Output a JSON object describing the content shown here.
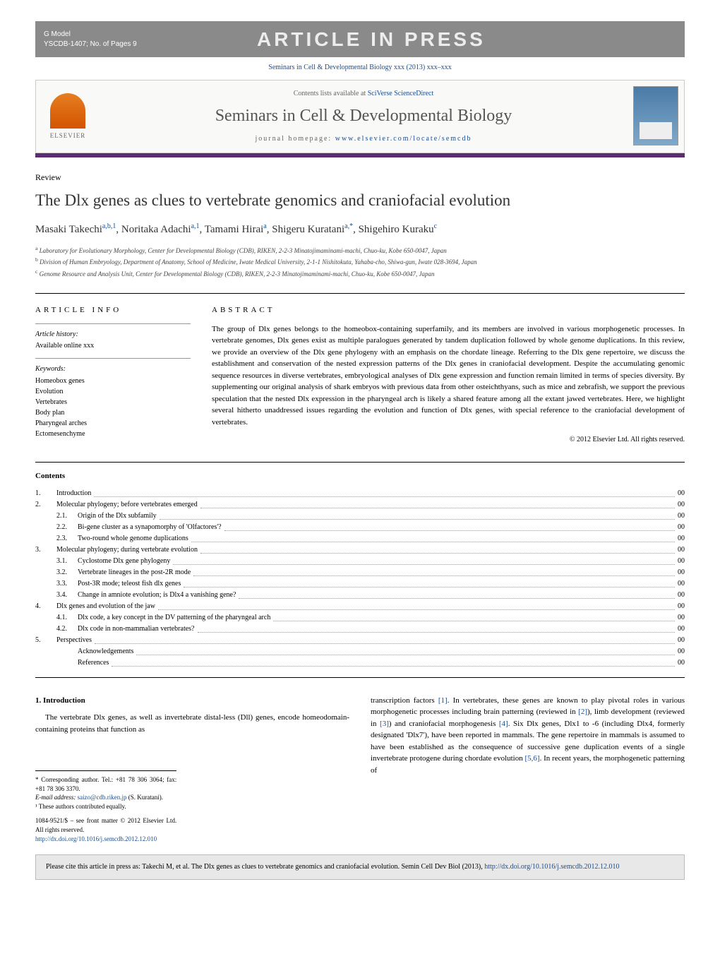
{
  "gmodel": {
    "label": "G Model",
    "ref": "YSCDB-1407;   No. of Pages 9",
    "banner": "ARTICLE IN PRESS"
  },
  "journal_ref": "Seminars in Cell & Developmental Biology xxx (2013) xxx–xxx",
  "header": {
    "contents_prefix": "Contents lists available at ",
    "contents_link": "SciVerse ScienceDirect",
    "journal_title": "Seminars in Cell & Developmental Biology",
    "homepage_prefix": "journal homepage: ",
    "homepage_link": "www.elsevier.com/locate/semcdb",
    "elsevier": "ELSEVIER"
  },
  "article": {
    "type": "Review",
    "title": "The Dlx genes as clues to vertebrate genomics and craniofacial evolution",
    "authors_html": "Masaki Takechi",
    "author1": {
      "name": "Masaki Takechi",
      "sup": "a,b,1"
    },
    "author2": {
      "name": "Noritaka Adachi",
      "sup": "a,1"
    },
    "author3": {
      "name": "Tamami Hirai",
      "sup": "a"
    },
    "author4": {
      "name": "Shigeru Kuratani",
      "sup": "a,*"
    },
    "author5": {
      "name": "Shigehiro Kuraku",
      "sup": "c"
    }
  },
  "affiliations": {
    "a": "Laboratory for Evolutionary Morphology, Center for Developmental Biology (CDB), RIKEN, 2-2-3 Minatojimaminami-machi, Chuo-ku, Kobe 650-0047, Japan",
    "b": "Division of Human Embryology, Department of Anatomy, School of Medicine, Iwate Medical University, 2-1-1 Nishitokuta, Yahaba-cho, Shiwa-gun, Iwate 028-3694, Japan",
    "c": "Genome Resource and Analysis Unit, Center for Developmental Biology (CDB), RIKEN, 2-2-3 Minatojimaminami-machi, Chuo-ku, Kobe 650-0047, Japan"
  },
  "info": {
    "heading": "ARTICLE INFO",
    "history_label": "Article history:",
    "history_text": "Available online xxx",
    "keywords_label": "Keywords:",
    "keywords": [
      "Homeobox genes",
      "Evolution",
      "Vertebrates",
      "Body plan",
      "Pharyngeal arches",
      "Ectomesenchyme"
    ]
  },
  "abstract": {
    "heading": "ABSTRACT",
    "text": "The group of Dlx genes belongs to the homeobox-containing superfamily, and its members are involved in various morphogenetic processes. In vertebrate genomes, Dlx genes exist as multiple paralogues generated by tandem duplication followed by whole genome duplications. In this review, we provide an overview of the Dlx gene phylogeny with an emphasis on the chordate lineage. Referring to the Dlx gene repertoire, we discuss the establishment and conservation of the nested expression patterns of the Dlx genes in craniofacial development. Despite the accumulating genomic sequence resources in diverse vertebrates, embryological analyses of Dlx gene expression and function remain limited in terms of species diversity. By supplementing our original analysis of shark embryos with previous data from other osteichthyans, such as mice and zebrafish, we support the previous speculation that the nested Dlx expression in the pharyngeal arch is likely a shared feature among all the extant jawed vertebrates. Here, we highlight several hitherto unaddressed issues regarding the evolution and function of Dlx genes, with special reference to the craniofacial development of vertebrates.",
    "copyright": "© 2012 Elsevier Ltd. All rights reserved."
  },
  "contents": {
    "heading": "Contents",
    "items": [
      {
        "num": "1.",
        "label": "Introduction",
        "page": "00",
        "level": 0
      },
      {
        "num": "2.",
        "label": "Molecular phylogeny; before vertebrates emerged",
        "page": "00",
        "level": 0
      },
      {
        "num": "2.1.",
        "label": "Origin of the Dlx subfamily",
        "page": "00",
        "level": 1
      },
      {
        "num": "2.2.",
        "label": "Bi-gene cluster as a synapomorphy of 'Olfactores'?",
        "page": "00",
        "level": 1
      },
      {
        "num": "2.3.",
        "label": "Two-round whole genome duplications",
        "page": "00",
        "level": 1
      },
      {
        "num": "3.",
        "label": "Molecular phylogeny; during vertebrate evolution",
        "page": "00",
        "level": 0
      },
      {
        "num": "3.1.",
        "label": "Cyclostome Dlx gene phylogeny",
        "page": "00",
        "level": 1
      },
      {
        "num": "3.2.",
        "label": "Vertebrate lineages in the post-2R mode",
        "page": "00",
        "level": 1
      },
      {
        "num": "3.3.",
        "label": "Post-3R mode; teleost fish dlx genes",
        "page": "00",
        "level": 1
      },
      {
        "num": "3.4.",
        "label": "Change in amniote evolution; is Dlx4 a vanishing gene?",
        "page": "00",
        "level": 1
      },
      {
        "num": "4.",
        "label": "Dlx genes and evolution of the jaw",
        "page": "00",
        "level": 0
      },
      {
        "num": "4.1.",
        "label": "Dlx code, a key concept in the DV patterning of the pharyngeal arch",
        "page": "00",
        "level": 1
      },
      {
        "num": "4.2.",
        "label": "Dlx code in non-mammalian vertebrates?",
        "page": "00",
        "level": 1
      },
      {
        "num": "5.",
        "label": "Perspectives",
        "page": "00",
        "level": 0
      },
      {
        "num": "",
        "label": "Acknowledgements",
        "page": "00",
        "level": 1
      },
      {
        "num": "",
        "label": "References",
        "page": "00",
        "level": 1
      }
    ]
  },
  "body": {
    "intro_heading": "1.  Introduction",
    "intro_p1": "The vertebrate Dlx genes, as well as invertebrate distal-less (Dll) genes, encode homeodomain-containing proteins that function as",
    "intro_p2a": "transcription factors ",
    "intro_p2b": ". In vertebrates, these genes are known to play pivotal roles in various morphogenetic processes including brain patterning (reviewed in ",
    "intro_p2c": "), limb development (reviewed in ",
    "intro_p2d": ") and craniofacial morphogenesis ",
    "intro_p2e": ". Six Dlx genes, Dlx1 to -6 (including Dlx4, formerly designated 'Dlx7'), have been reported in mammals. The gene repertoire in mammals is assumed to have been established as the consequence of successive gene duplication events of a single invertebrate protogene during chordate evolution ",
    "intro_p2f": ". In recent years, the morphogenetic patterning of",
    "refs": {
      "r1": "[1]",
      "r2": "[2]",
      "r3": "[3]",
      "r4": "[4]",
      "r56": "[5,6]"
    }
  },
  "footnotes": {
    "corr": "* Corresponding author. Tel.: +81 78 306 3064; fax: +81 78 306 3370.",
    "email_label": "E-mail address: ",
    "email": "saizo@cdb.riken.jp",
    "email_suffix": " (S. Kuratani).",
    "equal": "¹ These authors contributed equally.",
    "issn": "1084-9521/$ – see front matter © 2012 Elsevier Ltd. All rights reserved.",
    "doi": "http://dx.doi.org/10.1016/j.semcdb.2012.12.010"
  },
  "citebox": {
    "text": "Please cite this article in press as: Takechi M, et al. The Dlx genes as clues to vertebrate genomics and craniofacial evolution. Semin Cell Dev Biol (2013), ",
    "link": "http://dx.doi.org/10.1016/j.semcdb.2012.12.010"
  },
  "colors": {
    "link": "#1a4d8f",
    "purple_bar": "#5b2c6f",
    "gmodel_bg": "#8a8a8a"
  }
}
